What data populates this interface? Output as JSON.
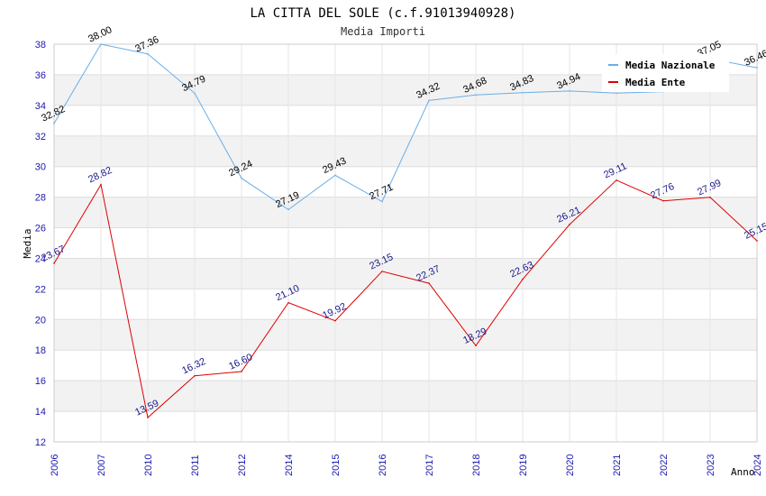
{
  "chart_data": {
    "type": "line",
    "title": "LA CITTA DEL SOLE (c.f.91013940928)",
    "subtitle": "Media Importi",
    "xlabel": "Anno",
    "ylabel": "Media",
    "ylim": [
      12,
      38
    ],
    "yticks": [
      12,
      14,
      16,
      18,
      20,
      22,
      24,
      26,
      28,
      30,
      32,
      34,
      36,
      38
    ],
    "categories": [
      "2006",
      "2007",
      "2010",
      "2011",
      "2012",
      "2014",
      "2015",
      "2016",
      "2017",
      "2018",
      "2019",
      "2020",
      "2021",
      "2022",
      "2023",
      "2024"
    ],
    "series": [
      {
        "name": "Media Nazionale",
        "color": "#6aaee8",
        "label_color": "#000000",
        "values": [
          32.82,
          38.0,
          37.36,
          34.79,
          29.24,
          27.19,
          29.43,
          27.71,
          34.32,
          34.68,
          34.83,
          34.94,
          34.8,
          34.9,
          37.05,
          36.46
        ],
        "labels": [
          "32.82",
          "38.00",
          "37.36",
          "34.79",
          "29.24",
          "27.19",
          "29.43",
          "27.71",
          "34.32",
          "34.68",
          "34.83",
          "34.94",
          "",
          "",
          "37.05",
          "36.46"
        ]
      },
      {
        "name": "Media Ente",
        "color": "#e00000",
        "label_color": "#1a1a8c",
        "values": [
          23.67,
          28.82,
          13.59,
          16.32,
          16.6,
          21.1,
          19.92,
          23.15,
          22.37,
          18.29,
          22.63,
          26.21,
          29.11,
          27.76,
          27.99,
          25.15
        ],
        "labels": [
          "23.67",
          "28.82",
          "13.59",
          "16.32",
          "16.60",
          "21.10",
          "19.92",
          "23.15",
          "22.37",
          "18.29",
          "22.63",
          "26.21",
          "29.11",
          "27.76",
          "27.99",
          "25.15"
        ]
      }
    ],
    "legend": {
      "position": "top-right",
      "items": [
        "Media Nazionale",
        "Media Ente"
      ]
    },
    "grid": true
  }
}
